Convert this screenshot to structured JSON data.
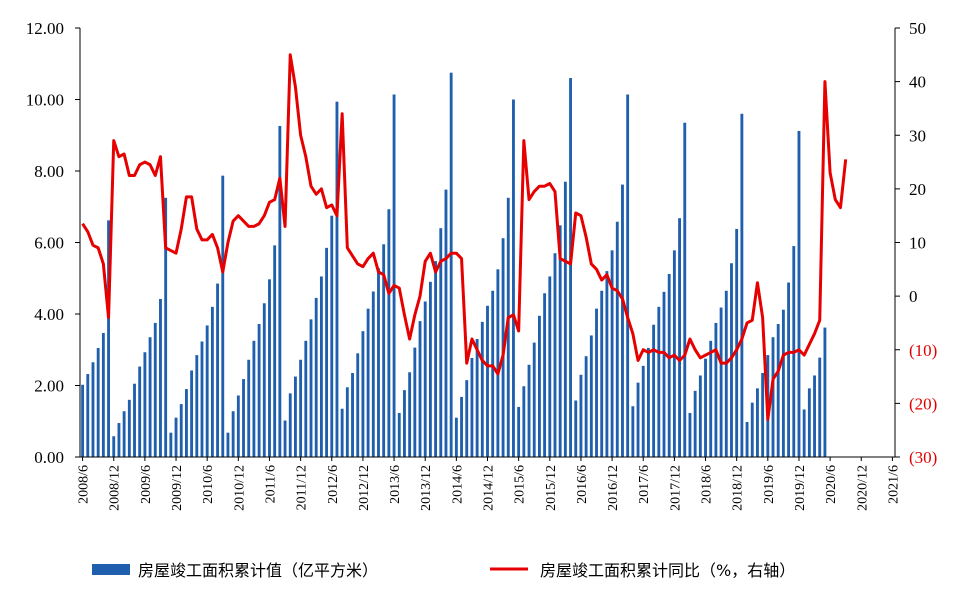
{
  "chart_data": {
    "type": "bar+line",
    "left_axis": {
      "ticks": [
        "0.00",
        "2.00",
        "4.00",
        "6.00",
        "8.00",
        "10.00",
        "12.00"
      ],
      "ylim": [
        0,
        12
      ]
    },
    "right_axis": {
      "ticks": [
        "(30)",
        "(20)",
        "(10)",
        "0",
        "10",
        "20",
        "30",
        "40",
        "50"
      ],
      "ylim": [
        -30,
        50
      ]
    },
    "x_tick_labels": [
      "2008/6",
      "2008/12",
      "2009/6",
      "2009/12",
      "2010/6",
      "2010/12",
      "2011/6",
      "2011/12",
      "2012/6",
      "2012/12",
      "2013/6",
      "2013/12",
      "2014/6",
      "2014/12",
      "2015/6",
      "2015/12",
      "2016/6",
      "2016/12",
      "2017/6",
      "2017/12",
      "2018/6",
      "2018/12",
      "2019/6",
      "2019/12",
      "2020/6",
      "2020/12",
      "2021/6"
    ],
    "start_month": "2008/6",
    "bar_series": {
      "name": "房屋竣工面积累计值（亿平方米）",
      "color": "#1f5fad",
      "values": [
        2.02,
        2.32,
        2.65,
        3.05,
        3.47,
        6.62,
        0.58,
        0.95,
        1.28,
        1.6,
        2.05,
        2.53,
        2.93,
        3.35,
        3.75,
        4.42,
        7.25,
        0.68,
        1.1,
        1.48,
        1.9,
        2.42,
        2.85,
        3.23,
        3.68,
        4.2,
        4.85,
        7.87,
        0.68,
        1.28,
        1.72,
        2.18,
        2.72,
        3.25,
        3.72,
        4.3,
        4.97,
        5.92,
        9.26,
        1.02,
        1.78,
        2.25,
        2.72,
        3.25,
        3.85,
        4.45,
        5.05,
        5.85,
        6.75,
        9.94,
        1.35,
        1.95,
        2.35,
        2.9,
        3.52,
        4.15,
        4.63,
        5.28,
        5.95,
        6.93,
        10.14,
        1.23,
        1.87,
        2.37,
        3.06,
        3.8,
        4.35,
        4.9,
        5.48,
        6.4,
        7.48,
        10.75,
        1.1,
        1.68,
        2.15,
        2.77,
        3.3,
        3.78,
        4.23,
        4.65,
        5.25,
        6.12,
        7.25,
        10.0,
        1.4,
        1.98,
        2.58,
        3.2,
        3.95,
        4.58,
        5.05,
        5.7,
        6.48,
        7.7,
        10.6,
        1.58,
        2.3,
        2.82,
        3.4,
        4.15,
        4.65,
        5.2,
        5.78,
        6.58,
        7.62,
        10.14,
        1.42,
        2.08,
        2.55,
        3.05,
        3.7,
        4.2,
        4.62,
        5.12,
        5.78,
        6.68,
        9.35,
        1.23,
        1.85,
        2.28,
        2.75,
        3.25,
        3.75,
        4.18,
        4.65,
        5.42,
        6.38,
        9.6,
        0.98,
        1.52,
        1.92,
        2.35,
        2.85,
        3.35,
        3.72,
        4.12,
        4.88,
        5.9,
        9.12,
        1.33,
        1.92,
        2.28,
        2.78,
        3.62
      ]
    },
    "line_series": {
      "name": "房屋竣工面积累计同比（%，右轴）",
      "color": "#e60000",
      "values": [
        13.5,
        12,
        9.5,
        9,
        6,
        -4,
        29,
        26,
        26.5,
        22.5,
        22.5,
        24.5,
        25,
        24.5,
        22.5,
        26,
        9,
        8.5,
        8,
        12.5,
        18.5,
        18.5,
        12.5,
        10.5,
        10.5,
        11.5,
        9,
        4.5,
        10,
        14,
        15,
        14,
        13,
        13,
        13.5,
        15,
        17.5,
        18,
        22,
        13,
        45,
        39,
        30,
        26,
        20.5,
        19,
        20,
        16.5,
        17,
        15,
        34,
        9,
        7.5,
        6,
        5.5,
        7,
        8,
        4.5,
        4,
        0.5,
        2,
        1.5,
        -3.5,
        -8,
        -3.5,
        0,
        6.5,
        8,
        4.5,
        6.5,
        7,
        8,
        8,
        7,
        -12.5,
        -8,
        -10,
        -12,
        -13,
        -13,
        -14.5,
        -11,
        -4,
        -3.5,
        -6.5,
        29,
        18,
        19.5,
        20.5,
        20.5,
        21,
        19.5,
        7,
        6.5,
        6,
        15.5,
        15,
        11,
        6,
        5,
        3,
        4,
        1.5,
        1,
        -0.5,
        -4,
        -7,
        -12,
        -10,
        -10.5,
        -10,
        -10.5,
        -10.5,
        -11.5,
        -11,
        -12,
        -11,
        -8,
        -10,
        -11.5,
        -11,
        -10.5,
        -10,
        -12.5,
        -12.5,
        -11.5,
        -10,
        -8,
        -5,
        -4.5,
        2.5,
        -4,
        -23,
        -15.5,
        -14,
        -11,
        -10.5,
        -10.5,
        -10,
        -11,
        -9,
        -7,
        -4.5,
        40,
        23,
        18,
        16.5,
        25.5
      ]
    }
  },
  "legend": {
    "bar_label": "房屋竣工面积累计值（亿平方米）",
    "line_label": "房屋竣工面积累计同比（%，右轴）"
  }
}
